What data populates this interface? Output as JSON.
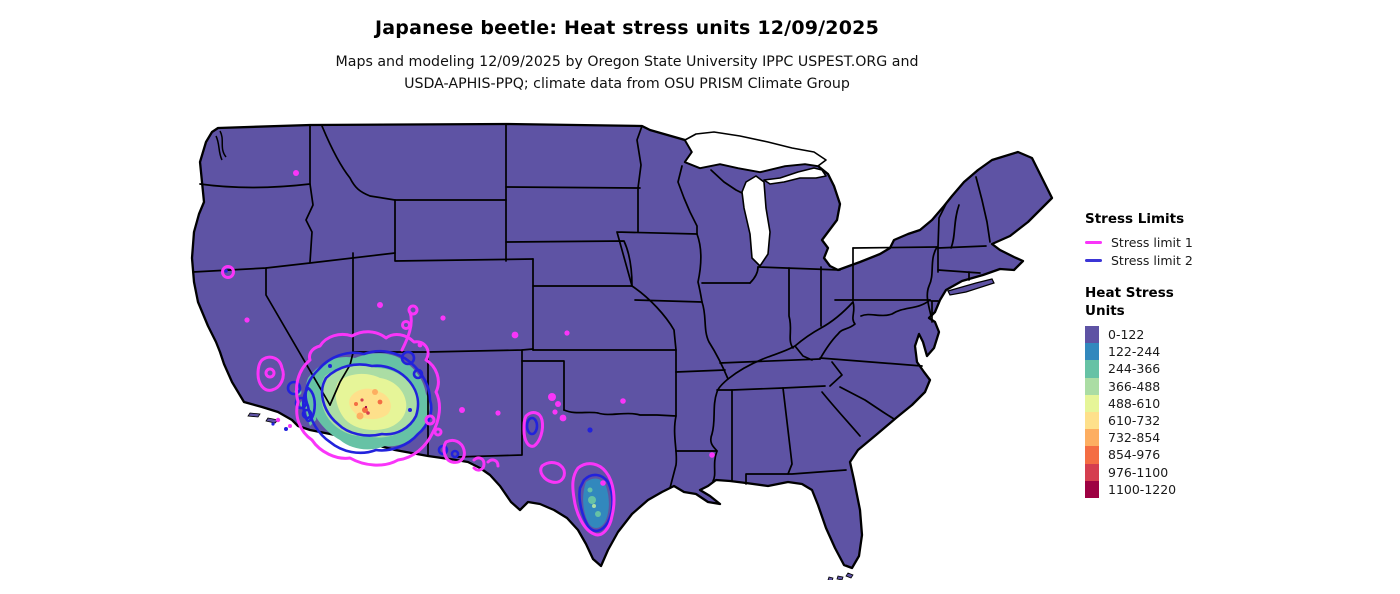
{
  "title": "Japanese beetle: Heat stress units 12/09/2025",
  "subtitle_lines": [
    "Maps and modeling 12/09/2025 by Oregon State University IPPC USPEST.ORG and",
    "USDA-APHIS-PPQ; climate data from OSU PRISM Climate Group"
  ],
  "legend": {
    "stress_limits": {
      "title": "Stress Limits",
      "items": [
        {
          "label": "Stress limit 1",
          "color": "#F935F9"
        },
        {
          "label": "Stress limit 2",
          "color": "#3B35D6"
        }
      ]
    },
    "heat_stress": {
      "title_lines": [
        "Heat Stress",
        "Units"
      ],
      "classes": [
        {
          "label": "0-122",
          "color": "#5E53A4"
        },
        {
          "label": "122-244",
          "color": "#3288BD"
        },
        {
          "label": "244-366",
          "color": "#66C2A5"
        },
        {
          "label": "366-488",
          "color": "#ABDDA4"
        },
        {
          "label": "488-610",
          "color": "#E6F598"
        },
        {
          "label": "610-732",
          "color": "#FEE08B"
        },
        {
          "label": "732-854",
          "color": "#FDAE61"
        },
        {
          "label": "854-976",
          "color": "#F46D43"
        },
        {
          "label": "976-1100",
          "color": "#D53E4F"
        },
        {
          "label": "1100-1220",
          "color": "#9E0142"
        }
      ]
    }
  },
  "map": {
    "region": "Contiguous United States",
    "base_class": "0-122",
    "colors": {
      "land": "#5E53A4",
      "border": "#000000",
      "water": "#FFFFFF",
      "stress_limit_1": "#F935F9",
      "stress_limit_2": "#2222DC"
    },
    "hotspots": [
      {
        "region": "Southern Arizona / southeastern California",
        "peak_class": "976-1100"
      },
      {
        "region": "South Texas (Rio Grande Valley)",
        "peak_class": "244-366"
      },
      {
        "region": "California Central Valley pockets",
        "peak_class": "122-244"
      },
      {
        "region": "Far west Texas / southern New Mexico pockets",
        "peak_class": "122-244"
      }
    ]
  }
}
